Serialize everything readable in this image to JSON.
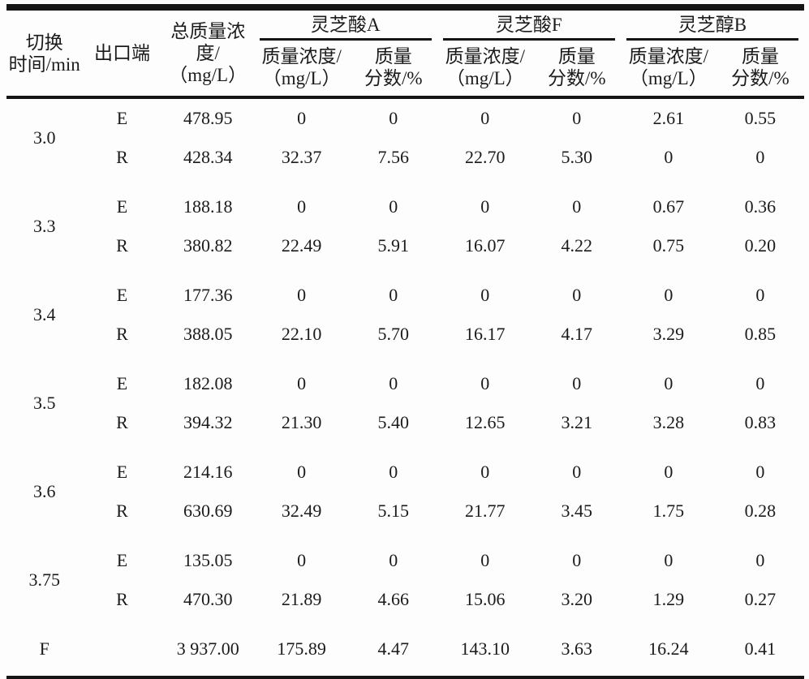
{
  "page": {
    "background": "#fdfdfd",
    "text_color": "#1b1b1b",
    "rule_color": "#151515"
  },
  "table": {
    "header": {
      "time_label_lines": [
        "切换",
        "时间/min"
      ],
      "outlet_label": "出口端",
      "total_label_lines": [
        "总质量浓",
        "度/",
        "（mg/L）"
      ],
      "groups": [
        {
          "label": "灵芝酸A"
        },
        {
          "label": "灵芝酸F"
        },
        {
          "label": "灵芝醇B"
        }
      ],
      "sub_conc_lines": [
        "质量浓度/",
        "（mg/L）"
      ],
      "sub_frac_lines": [
        "质量",
        "分数/%"
      ]
    },
    "body": [
      {
        "time": "3.0",
        "rows": [
          {
            "outlet": "E",
            "values": [
              "478.95",
              "0",
              "0",
              "0",
              "0",
              "2.61",
              "0.55"
            ]
          },
          {
            "outlet": "R",
            "values": [
              "428.34",
              "32.37",
              "7.56",
              "22.70",
              "5.30",
              "0",
              "0"
            ]
          }
        ]
      },
      {
        "time": "3.3",
        "rows": [
          {
            "outlet": "E",
            "values": [
              "188.18",
              "0",
              "0",
              "0",
              "0",
              "0.67",
              "0.36"
            ]
          },
          {
            "outlet": "R",
            "values": [
              "380.82",
              "22.49",
              "5.91",
              "16.07",
              "4.22",
              "0.75",
              "0.20"
            ]
          }
        ]
      },
      {
        "time": "3.4",
        "rows": [
          {
            "outlet": "E",
            "values": [
              "177.36",
              "0",
              "0",
              "0",
              "0",
              "0",
              "0"
            ]
          },
          {
            "outlet": "R",
            "values": [
              "388.05",
              "22.10",
              "5.70",
              "16.17",
              "4.17",
              "3.29",
              "0.85"
            ]
          }
        ]
      },
      {
        "time": "3.5",
        "rows": [
          {
            "outlet": "E",
            "values": [
              "182.08",
              "0",
              "0",
              "0",
              "0",
              "0",
              "0"
            ]
          },
          {
            "outlet": "R",
            "values": [
              "394.32",
              "21.30",
              "5.40",
              "12.65",
              "3.21",
              "3.28",
              "0.83"
            ]
          }
        ]
      },
      {
        "time": "3.6",
        "rows": [
          {
            "outlet": "E",
            "values": [
              "214.16",
              "0",
              "0",
              "0",
              "0",
              "0",
              "0"
            ]
          },
          {
            "outlet": "R",
            "values": [
              "630.69",
              "32.49",
              "5.15",
              "21.77",
              "3.45",
              "1.75",
              "0.28"
            ]
          }
        ]
      },
      {
        "time": "3.75",
        "rows": [
          {
            "outlet": "E",
            "values": [
              "135.05",
              "0",
              "0",
              "0",
              "0",
              "0",
              "0"
            ]
          },
          {
            "outlet": "R",
            "values": [
              "470.30",
              "21.89",
              "4.66",
              "15.06",
              "3.20",
              "1.29",
              "0.27"
            ]
          }
        ]
      },
      {
        "time": "F",
        "rows": [
          {
            "outlet": "",
            "values": [
              "3 937.00",
              "175.89",
              "4.47",
              "143.10",
              "3.63",
              "16.24",
              "0.41"
            ]
          }
        ]
      }
    ]
  },
  "chart_data": {
    "type": "table",
    "title": "",
    "columns": [
      "切换时间/min",
      "出口端",
      "总质量浓度/（mg/L）",
      "灵芝酸A 质量浓度/（mg/L）",
      "灵芝酸A 质量分数/%",
      "灵芝酸F 质量浓度/（mg/L）",
      "灵芝酸F 质量分数/%",
      "灵芝醇B 质量浓度/（mg/L）",
      "灵芝醇B 质量分数/%"
    ],
    "rows": [
      [
        "3.0",
        "E",
        "478.95",
        "0",
        "0",
        "0",
        "0",
        "2.61",
        "0.55"
      ],
      [
        "3.0",
        "R",
        "428.34",
        "32.37",
        "7.56",
        "22.70",
        "5.30",
        "0",
        "0"
      ],
      [
        "3.3",
        "E",
        "188.18",
        "0",
        "0",
        "0",
        "0",
        "0.67",
        "0.36"
      ],
      [
        "3.3",
        "R",
        "380.82",
        "22.49",
        "5.91",
        "16.07",
        "4.22",
        "0.75",
        "0.20"
      ],
      [
        "3.4",
        "E",
        "177.36",
        "0",
        "0",
        "0",
        "0",
        "0",
        "0"
      ],
      [
        "3.4",
        "R",
        "388.05",
        "22.10",
        "5.70",
        "16.17",
        "4.17",
        "3.29",
        "0.85"
      ],
      [
        "3.5",
        "E",
        "182.08",
        "0",
        "0",
        "0",
        "0",
        "0",
        "0"
      ],
      [
        "3.5",
        "R",
        "394.32",
        "21.30",
        "5.40",
        "12.65",
        "3.21",
        "3.28",
        "0.83"
      ],
      [
        "3.6",
        "E",
        "214.16",
        "0",
        "0",
        "0",
        "0",
        "0",
        "0"
      ],
      [
        "3.6",
        "R",
        "630.69",
        "32.49",
        "5.15",
        "21.77",
        "3.45",
        "1.75",
        "0.28"
      ],
      [
        "3.75",
        "E",
        "135.05",
        "0",
        "0",
        "0",
        "0",
        "0",
        "0"
      ],
      [
        "3.75",
        "R",
        "470.30",
        "21.89",
        "4.66",
        "15.06",
        "3.20",
        "1.29",
        "0.27"
      ],
      [
        "F",
        "",
        "3 937.00",
        "175.89",
        "4.47",
        "143.10",
        "3.63",
        "16.24",
        "0.41"
      ]
    ]
  }
}
